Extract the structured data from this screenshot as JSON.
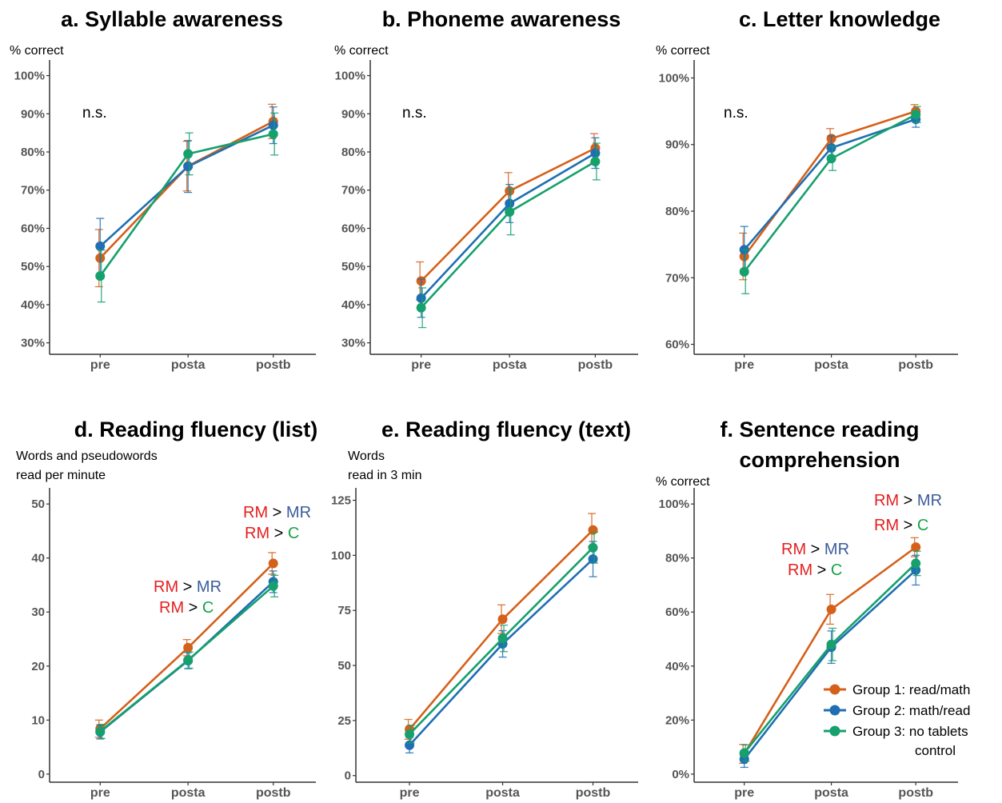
{
  "colors": {
    "g1": "#d5601a",
    "g2": "#1f6fb2",
    "g3": "#16a06d",
    "rm": "#e61e1e",
    "mr": "#3a5d9c",
    "c": "#19a24a",
    "gt": "#000000",
    "axis": "#333333"
  },
  "legend": [
    {
      "label": "Group 1: read/math",
      "color_key": "g1"
    },
    {
      "label": "Group 2: math/read",
      "color_key": "g2"
    },
    {
      "label": "Group 3: no tablets",
      "color_key": "g3"
    }
  ],
  "legend_extra": "control",
  "chart_data": [
    {
      "type": "line",
      "title": "a. Syllable awareness",
      "ylabel": [
        "% correct"
      ],
      "categories": [
        "pre",
        "posta",
        "postb"
      ],
      "ylim": [
        27,
        102
      ],
      "yticks": [
        30,
        40,
        50,
        60,
        70,
        80,
        90,
        100
      ],
      "ytick_labels": [
        "30%",
        "40%",
        "50%",
        "60%",
        "70%",
        "80%",
        "90%",
        "100%"
      ],
      "series": [
        {
          "color_key": "g1",
          "values": [
            52.2,
            76.3,
            88.0
          ],
          "err": [
            7.5,
            6.5,
            4.5
          ]
        },
        {
          "color_key": "g2",
          "values": [
            55.3,
            76.2,
            87.0
          ],
          "err": [
            7.3,
            6.8,
            4.8
          ]
        },
        {
          "color_key": "g3",
          "values": [
            47.5,
            79.5,
            84.7
          ],
          "err": [
            6.8,
            5.5,
            5.5
          ]
        }
      ],
      "annotations": [
        {
          "parts": [
            {
              "text": "n.s.",
              "color_key": "gt"
            }
          ]
        }
      ]
    },
    {
      "type": "line",
      "title": "b. Phoneme awareness",
      "ylabel": [
        "% correct"
      ],
      "categories": [
        "pre",
        "posta",
        "postb"
      ],
      "ylim": [
        27,
        102
      ],
      "yticks": [
        30,
        40,
        50,
        60,
        70,
        80,
        90,
        100
      ],
      "ytick_labels": [
        "30%",
        "40%",
        "50%",
        "60%",
        "70%",
        "80%",
        "90%",
        "100%"
      ],
      "series": [
        {
          "color_key": "g1",
          "values": [
            46.2,
            69.8,
            81.0
          ],
          "err": [
            5.0,
            4.8,
            3.8
          ]
        },
        {
          "color_key": "g2",
          "values": [
            41.7,
            66.5,
            79.7
          ],
          "err": [
            5.0,
            5.0,
            4.0
          ]
        },
        {
          "color_key": "g3",
          "values": [
            39.2,
            64.3,
            77.5
          ],
          "err": [
            5.2,
            6.0,
            4.8
          ]
        }
      ],
      "annotations": [
        {
          "parts": [
            {
              "text": "n.s.",
              "color_key": "gt"
            }
          ]
        }
      ]
    },
    {
      "type": "line",
      "title": "c. Letter knowledge",
      "ylabel": [
        "% correct"
      ],
      "categories": [
        "pre",
        "posta",
        "postb"
      ],
      "ylim": [
        58.5,
        101.5
      ],
      "yticks": [
        60,
        70,
        80,
        90,
        100
      ],
      "ytick_labels": [
        "60%",
        "70%",
        "80%",
        "90%",
        "100%"
      ],
      "series": [
        {
          "color_key": "g1",
          "values": [
            73.2,
            90.9,
            95.0
          ],
          "err": [
            3.5,
            1.5,
            1.0
          ]
        },
        {
          "color_key": "g2",
          "values": [
            74.2,
            89.5,
            93.8
          ],
          "err": [
            3.5,
            1.8,
            1.2
          ]
        },
        {
          "color_key": "g3",
          "values": [
            70.9,
            87.9,
            94.5
          ],
          "err": [
            3.3,
            1.8,
            1.2
          ]
        }
      ],
      "annotations": [
        {
          "parts": [
            {
              "text": "n.s.",
              "color_key": "gt"
            }
          ]
        }
      ]
    },
    {
      "type": "line",
      "title": "d. Reading fluency (list)",
      "ylabel": [
        "Words and pseudowords",
        "read per minute"
      ],
      "categories": [
        "pre",
        "posta",
        "postb"
      ],
      "ylim": [
        -1.5,
        51.5
      ],
      "yticks": [
        0,
        10,
        20,
        30,
        40,
        50
      ],
      "ytick_labels": [
        "0",
        "10",
        "20",
        "30",
        "40",
        "50"
      ],
      "series": [
        {
          "color_key": "g1",
          "values": [
            8.4,
            23.4,
            39.0
          ],
          "err": [
            1.6,
            1.5,
            2.0
          ]
        },
        {
          "color_key": "g2",
          "values": [
            7.8,
            21.0,
            35.6
          ],
          "err": [
            1.3,
            1.5,
            2.0
          ]
        },
        {
          "color_key": "g3",
          "values": [
            7.9,
            21.1,
            34.8
          ],
          "err": [
            1.3,
            1.5,
            2.0
          ]
        }
      ],
      "annotations": [
        {
          "parts": [
            {
              "text": "RM",
              "color_key": "rm"
            },
            {
              "text": " > ",
              "color_key": "gt"
            },
            {
              "text": "MR",
              "color_key": "mr"
            }
          ]
        },
        {
          "parts": [
            {
              "text": "RM",
              "color_key": "rm"
            },
            {
              "text": " > ",
              "color_key": "gt"
            },
            {
              "text": "C",
              "color_key": "c"
            }
          ]
        },
        {
          "parts": [
            {
              "text": "RM",
              "color_key": "rm"
            },
            {
              "text": " > ",
              "color_key": "gt"
            },
            {
              "text": "MR",
              "color_key": "mr"
            }
          ]
        },
        {
          "parts": [
            {
              "text": "RM",
              "color_key": "rm"
            },
            {
              "text": " > ",
              "color_key": "gt"
            },
            {
              "text": "C",
              "color_key": "c"
            }
          ]
        }
      ]
    },
    {
      "type": "line",
      "title": "e. Reading fluency (text)",
      "ylabel": [
        "Words",
        "read in 3 min"
      ],
      "categories": [
        "pre",
        "posta",
        "postb"
      ],
      "ylim": [
        -3,
        127
      ],
      "yticks": [
        0,
        25,
        50,
        75,
        100,
        125
      ],
      "ytick_labels": [
        "0",
        "25",
        "50",
        "75",
        "100",
        "125"
      ],
      "series": [
        {
          "color_key": "g1",
          "values": [
            21.0,
            71.0,
            111.5
          ],
          "err": [
            4.5,
            6.5,
            7.5
          ]
        },
        {
          "color_key": "g2",
          "values": [
            13.8,
            59.8,
            98.3
          ],
          "err": [
            3.5,
            6.0,
            8.0
          ]
        },
        {
          "color_key": "g3",
          "values": [
            18.8,
            62.3,
            103.5
          ],
          "err": [
            4.0,
            6.0,
            7.0
          ]
        }
      ],
      "annotations": []
    },
    {
      "type": "line",
      "title": "f. Sentence reading comprehension",
      "title_lines": [
        "f. Sentence reading",
        "comprehension"
      ],
      "ylabel": [
        "% correct"
      ],
      "categories": [
        "pre",
        "posta",
        "postb"
      ],
      "ylim": [
        -3,
        103
      ],
      "yticks": [
        0,
        20,
        40,
        60,
        80,
        100
      ],
      "ytick_labels": [
        "0%",
        "20%",
        "40%",
        "60%",
        "80%",
        "100%"
      ],
      "series": [
        {
          "color_key": "g1",
          "values": [
            7.5,
            61.0,
            84.0
          ],
          "err": [
            3.5,
            5.5,
            3.5
          ]
        },
        {
          "color_key": "g2",
          "values": [
            5.5,
            47.0,
            75.5
          ],
          "err": [
            3.0,
            6.0,
            5.5
          ]
        },
        {
          "color_key": "g3",
          "values": [
            7.8,
            48.0,
            78.0
          ],
          "err": [
            3.0,
            6.0,
            4.5
          ]
        }
      ],
      "annotations": [
        {
          "parts": [
            {
              "text": "RM",
              "color_key": "rm"
            },
            {
              "text": " > ",
              "color_key": "gt"
            },
            {
              "text": "MR",
              "color_key": "mr"
            }
          ]
        },
        {
          "parts": [
            {
              "text": "RM",
              "color_key": "rm"
            },
            {
              "text": " > ",
              "color_key": "gt"
            },
            {
              "text": "C",
              "color_key": "c"
            }
          ]
        },
        {
          "parts": [
            {
              "text": "RM",
              "color_key": "rm"
            },
            {
              "text": " > ",
              "color_key": "gt"
            },
            {
              "text": "MR",
              "color_key": "mr"
            }
          ]
        },
        {
          "parts": [
            {
              "text": "RM",
              "color_key": "rm"
            },
            {
              "text": " > ",
              "color_key": "gt"
            },
            {
              "text": "C",
              "color_key": "c"
            }
          ]
        }
      ]
    }
  ]
}
